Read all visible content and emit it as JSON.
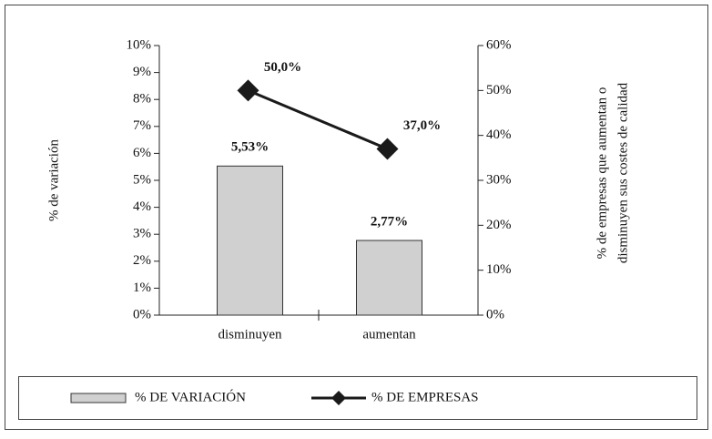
{
  "chart_data": {
    "type": "bar-line",
    "y_label": "% de variación",
    "y2_label": [
      "% de empresas que aumentan o",
      "disminuyen sus costes de calidad"
    ],
    "categories": [
      "disminuyen",
      "aumentan"
    ],
    "series": [
      {
        "name": "% DE VARIACIÓN",
        "type": "bar",
        "color": "#d0d0d0",
        "values": [
          5.53,
          2.77
        ],
        "value_labels": [
          "5,53%",
          "2,77%"
        ]
      },
      {
        "name": "% DE EMPRESAS",
        "type": "line",
        "axis": "y2",
        "color": "#1a1a1a",
        "values": [
          50.0,
          37.0
        ],
        "value_labels": [
          "50,0%",
          "37,0%"
        ]
      }
    ],
    "ylim": [
      0,
      10
    ],
    "yticks": [
      {
        "value": 0,
        "label": "0%"
      },
      {
        "value": 1,
        "label": "1%"
      },
      {
        "value": 2,
        "label": "2%"
      },
      {
        "value": 3,
        "label": "3%"
      },
      {
        "value": 4,
        "label": "4%"
      },
      {
        "value": 5,
        "label": "5%"
      },
      {
        "value": 6,
        "label": "6%"
      },
      {
        "value": 7,
        "label": "7%"
      },
      {
        "value": 8,
        "label": "8%"
      },
      {
        "value": 9,
        "label": "9%"
      },
      {
        "value": 10,
        "label": "10%"
      }
    ],
    "y2lim": [
      0,
      60
    ],
    "y2ticks": [
      {
        "value": 0,
        "label": "0%"
      },
      {
        "value": 10,
        "label": "10%"
      },
      {
        "value": 20,
        "label": "20%"
      },
      {
        "value": 30,
        "label": "30%"
      },
      {
        "value": 40,
        "label": "40%"
      },
      {
        "value": 50,
        "label": "50%"
      },
      {
        "value": 60,
        "label": "60%"
      }
    ],
    "legend": "bottom"
  }
}
